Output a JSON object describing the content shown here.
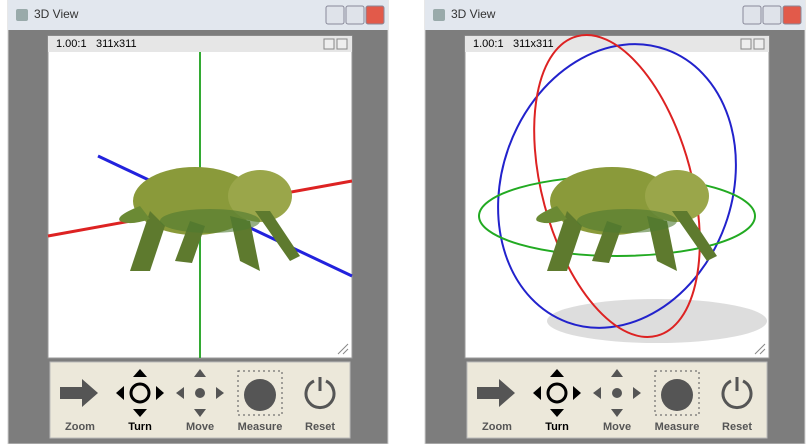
{
  "windows": [
    {
      "title": "3D View",
      "viewport": {
        "scale": "1.00:1",
        "size": "311x311"
      },
      "toolbar": [
        "Zoom",
        "Turn",
        "Move",
        "Measure",
        "Reset"
      ]
    },
    {
      "title": "3D View",
      "viewport": {
        "scale": "1.00:1",
        "size": "311x311"
      },
      "toolbar": [
        "Zoom",
        "Turn",
        "Move",
        "Measure",
        "Reset"
      ]
    }
  ]
}
